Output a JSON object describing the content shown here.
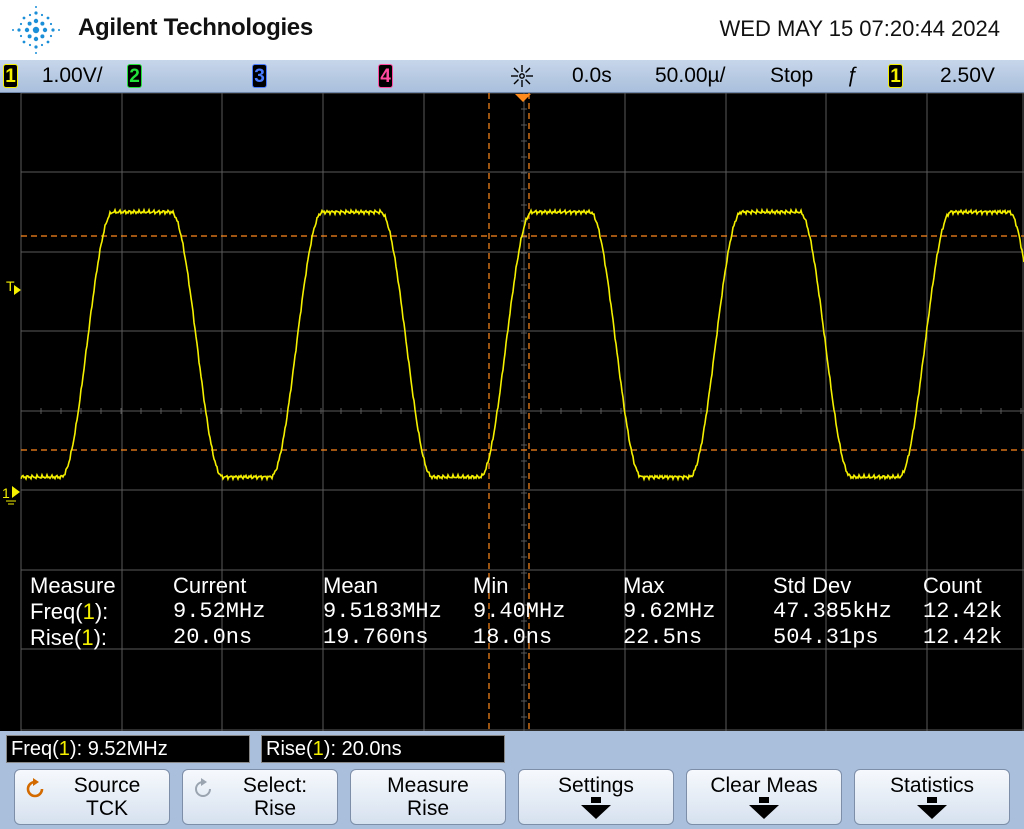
{
  "header": {
    "brand": "Agilent Technologies",
    "datetime": "WED MAY 15 07:20:44 2024"
  },
  "statusbar": {
    "ch1_label": "1",
    "ch1_scale": "1.00V/",
    "ch2_label": "2",
    "ch3_label": "3",
    "ch4_label": "4",
    "time_ref": "0.0s",
    "time_scale": "50.00µ/",
    "run_state": "Stop",
    "trigger_edge": "ƒ",
    "trigger_source": "1",
    "trigger_level": "2.50V"
  },
  "screen": {
    "trigger_marker": "T",
    "ground_marker": "1"
  },
  "measurements": {
    "headers": [
      "Measure",
      "Current",
      "Mean",
      "Min",
      "Max",
      "Std Dev",
      "Count"
    ],
    "rows": [
      {
        "name": "Freq(",
        "ch": "1",
        "suffix": "):",
        "current": "9.52MHz",
        "mean": "9.5183MHz",
        "min": "9.40MHz",
        "max": "9.62MHz",
        "std_dev": "47.385kHz",
        "count": "12.42k"
      },
      {
        "name": "Rise(",
        "ch": "1",
        "suffix": "):",
        "current": "20.0ns",
        "mean": "19.760ns",
        "min": "18.0ns",
        "max": "22.5ns",
        "std_dev": "504.31ps",
        "count": "12.42k"
      }
    ]
  },
  "readouts": {
    "freq_prefix": "Freq(",
    "freq_ch": "1",
    "freq_value": "): 9.52MHz",
    "rise_prefix": "Rise(",
    "rise_ch": "1",
    "rise_value": "): 20.0ns"
  },
  "softkeys": [
    {
      "line1": "Source",
      "line2": "TCK",
      "knob": true
    },
    {
      "line1": "Select:",
      "line2": "Rise",
      "knob": true
    },
    {
      "line1": "Measure",
      "line2": "Rise",
      "knob": false
    },
    {
      "line1": "Settings",
      "line2": "",
      "arrow": true
    },
    {
      "line1": "Clear Meas",
      "line2": "",
      "arrow": true
    },
    {
      "line1": "Statistics",
      "line2": "",
      "arrow": true
    }
  ],
  "colors": {
    "ch1": "#f4f000",
    "ch2": "#23e23a",
    "ch3": "#4a7cff",
    "ch4": "#ff4aa0",
    "cursor": "#ff8a1c",
    "grid": "#5a5a5a",
    "panel": "#a9bfdc"
  },
  "icons": {
    "logo": "agilent-spark-icon",
    "acquire": "acquire-starburst-icon",
    "knob": "rotate-knob-icon"
  }
}
